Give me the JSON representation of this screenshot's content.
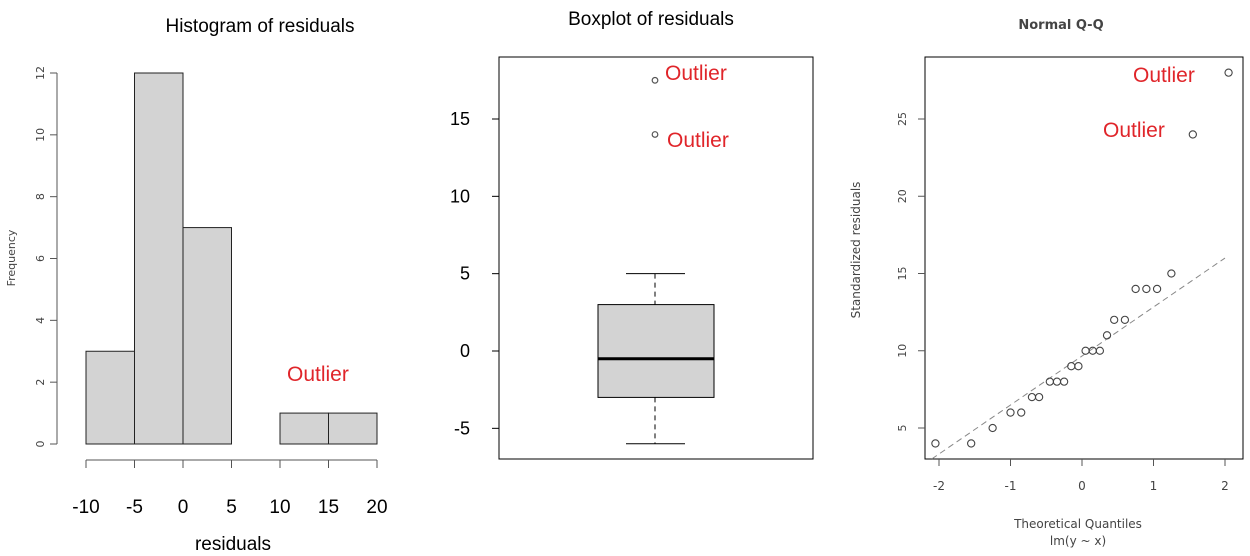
{
  "annotation_color": "#e0252a",
  "bar_fill": "#d3d3d3",
  "chart_data": [
    {
      "type": "bar",
      "title": "Histogram of residuals",
      "xlabel": "residuals",
      "ylabel": "Frequency",
      "bins": [
        [
          -10,
          -5
        ],
        [
          -5,
          0
        ],
        [
          0,
          5
        ],
        [
          5,
          10
        ],
        [
          10,
          15
        ],
        [
          15,
          20
        ]
      ],
      "values": [
        3,
        12,
        7,
        0,
        1,
        1
      ],
      "xlim": [
        -10,
        20
      ],
      "ylim": [
        0,
        12
      ],
      "x_ticks": [
        -10,
        -5,
        0,
        5,
        10,
        15,
        20
      ],
      "x_tick_labels": [
        "-10",
        "-5",
        "0",
        "5",
        "10",
        "15",
        "20"
      ],
      "y_ticks": [
        0,
        2,
        4,
        6,
        8,
        10,
        12
      ],
      "y_tick_labels": [
        "0",
        "2",
        "4",
        "6",
        "8",
        "10",
        "12"
      ],
      "annotations": [
        {
          "text": "Outlier"
        }
      ]
    },
    {
      "type": "box",
      "title": "Boxplot of residuals",
      "stats": {
        "whisker_low": -6,
        "q1": -3,
        "median": -0.5,
        "q3": 3,
        "whisker_high": 5
      },
      "outliers": [
        14,
        17.5
      ],
      "ylim": [
        -7,
        19
      ],
      "y_ticks": [
        -5,
        0,
        5,
        10,
        15
      ],
      "y_tick_labels": [
        "-5",
        "0",
        "5",
        "10",
        "15"
      ],
      "annotations": [
        {
          "text": "Outlier"
        },
        {
          "text": "Outlier"
        }
      ]
    },
    {
      "type": "scatter",
      "title": "Normal Q-Q",
      "xlabel": "Theoretical Quantiles",
      "xlabel2": "lm(y ~ x)",
      "ylabel": "Standardized residuals",
      "points": [
        {
          "x": -2.05,
          "y": 4
        },
        {
          "x": -1.55,
          "y": 4
        },
        {
          "x": -1.25,
          "y": 5
        },
        {
          "x": -1.0,
          "y": 6
        },
        {
          "x": -0.85,
          "y": 6
        },
        {
          "x": -0.7,
          "y": 7
        },
        {
          "x": -0.6,
          "y": 7
        },
        {
          "x": -0.45,
          "y": 8
        },
        {
          "x": -0.35,
          "y": 8
        },
        {
          "x": -0.25,
          "y": 8
        },
        {
          "x": -0.15,
          "y": 9
        },
        {
          "x": -0.05,
          "y": 9
        },
        {
          "x": 0.05,
          "y": 10
        },
        {
          "x": 0.15,
          "y": 10
        },
        {
          "x": 0.25,
          "y": 10
        },
        {
          "x": 0.35,
          "y": 11
        },
        {
          "x": 0.45,
          "y": 12
        },
        {
          "x": 0.6,
          "y": 12
        },
        {
          "x": 0.75,
          "y": 14
        },
        {
          "x": 0.9,
          "y": 14
        },
        {
          "x": 1.05,
          "y": 14
        },
        {
          "x": 1.25,
          "y": 15
        },
        {
          "x": 1.55,
          "y": 24
        },
        {
          "x": 2.05,
          "y": 28
        }
      ],
      "reference_line": [
        [
          -2.1,
          3
        ],
        [
          2.0,
          16
        ]
      ],
      "xlim": [
        -2.15,
        2.15
      ],
      "ylim": [
        3,
        29
      ],
      "x_ticks": [
        -2,
        -1,
        0,
        1,
        2
      ],
      "x_tick_labels": [
        "-2",
        "-1",
        "0",
        "1",
        "2"
      ],
      "y_ticks": [
        5,
        10,
        15,
        20,
        25
      ],
      "y_tick_labels": [
        "5",
        "10",
        "15",
        "20",
        "25"
      ],
      "annotations": [
        {
          "text": "Outlier"
        },
        {
          "text": "Outlier"
        }
      ]
    }
  ]
}
